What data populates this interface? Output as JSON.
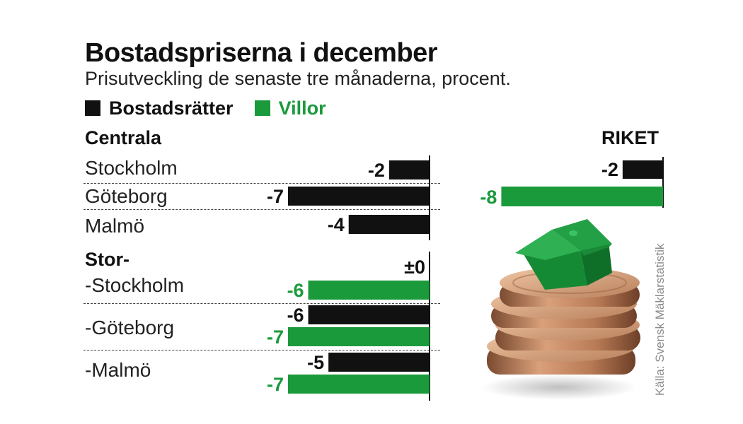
{
  "title": "Bostadspriserna i december",
  "subtitle": "Prisutveckling de senaste tre månaderna, procent.",
  "legend": [
    {
      "label": "Bostadsrätter",
      "color": "#111111",
      "series": "bostadsratter"
    },
    {
      "label": "Villor",
      "color": "#1b9a3c",
      "series": "villor"
    }
  ],
  "sections": {
    "centrala": "Centrala",
    "stor": "Stor-",
    "riket": "RIKET"
  },
  "source": "Källa: Svensk Mäklarstatistik",
  "colors": {
    "bostadsratter": "#111111",
    "villor": "#1b9a3c"
  },
  "chart_data": [
    {
      "type": "bar",
      "orientation": "horizontal",
      "title": "Centrala",
      "categories": [
        "Stockholm",
        "Göteborg",
        "Malmö"
      ],
      "series": [
        {
          "name": "Bostadsrätter",
          "values": [
            -2,
            -7,
            -4
          ]
        }
      ]
    },
    {
      "type": "bar",
      "orientation": "horizontal",
      "title": "Stor-",
      "categories": [
        "-Stockholm",
        "-Göteborg",
        "-Malmö"
      ],
      "series": [
        {
          "name": "Bostadsrätter",
          "values": [
            0,
            -6,
            -5
          ],
          "labels": [
            "±0",
            "-6",
            "-5"
          ]
        },
        {
          "name": "Villor",
          "values": [
            -6,
            -7,
            -7
          ],
          "labels": [
            "-6",
            "-7",
            "-7"
          ]
        }
      ]
    },
    {
      "type": "bar",
      "orientation": "horizontal",
      "title": "RIKET",
      "categories": [
        "RIKET"
      ],
      "series": [
        {
          "name": "Bostadsrätter",
          "values": [
            -2
          ]
        },
        {
          "name": "Villor",
          "values": [
            -8
          ]
        }
      ]
    }
  ]
}
